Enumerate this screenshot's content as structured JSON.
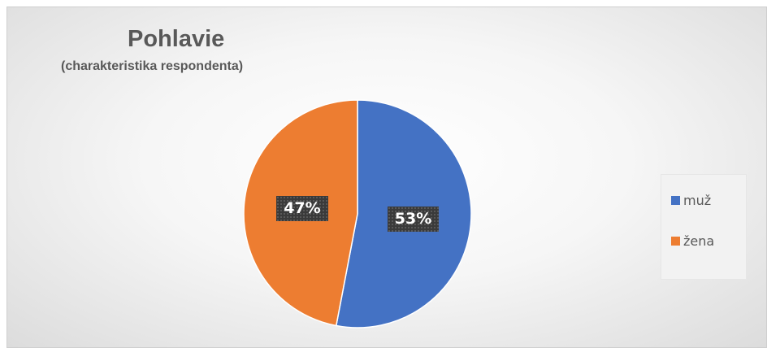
{
  "chart_data": {
    "type": "pie",
    "title": "Pohlavie",
    "subtitle": "(charakteristika respondenta)",
    "categories": [
      "muž",
      "žena"
    ],
    "values": [
      53,
      47
    ],
    "data_labels": [
      "53%",
      "47%"
    ],
    "colors": [
      "#4472c4",
      "#ed7d31"
    ],
    "legend_position": "right"
  }
}
